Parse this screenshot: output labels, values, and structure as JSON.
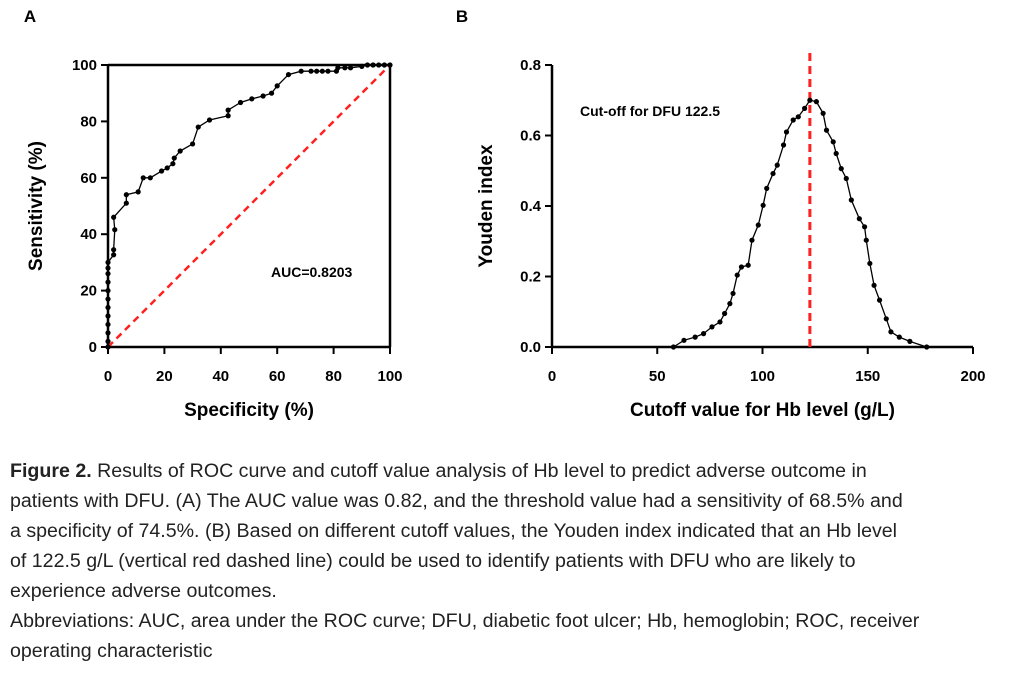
{
  "chart_data": [
    {
      "panel_label": "A",
      "type": "line",
      "xlabel": "Specificity (%)",
      "ylabel": "Sensitivity (%)",
      "xlim": [
        0,
        100
      ],
      "ylim": [
        0,
        100
      ],
      "xticks": [
        "0",
        "20",
        "40",
        "60",
        "80",
        "100"
      ],
      "yticks": [
        "0",
        "20",
        "40",
        "60",
        "80",
        "100"
      ],
      "grid": false,
      "annotation": "AUC=0.8203",
      "line_color": "#000000",
      "reference_line": {
        "from": [
          0,
          0
        ],
        "to": [
          100,
          100
        ],
        "color": "#ff2020",
        "style": "dashed"
      },
      "x": [
        0,
        0,
        0,
        0,
        0,
        0,
        0,
        0,
        0,
        0,
        0,
        0,
        2,
        2,
        2.4,
        2,
        6.5,
        6.5,
        10.7,
        12.5,
        15,
        19,
        21,
        23,
        23.5,
        25.6,
        30,
        32,
        36,
        42.6,
        42.6,
        47,
        51,
        55,
        58,
        60,
        64,
        68.5,
        72,
        74,
        76,
        78,
        81,
        81.5,
        84,
        86,
        90,
        92,
        94,
        96,
        98,
        100
      ],
      "y": [
        0,
        2,
        5,
        8,
        11,
        14,
        17,
        20,
        23,
        26,
        28,
        30,
        32.7,
        34.5,
        41.6,
        46,
        51,
        54,
        55,
        60,
        60,
        62.4,
        63.5,
        65,
        67,
        69.5,
        72,
        78,
        80.5,
        82,
        84,
        86.7,
        88,
        89,
        90,
        92.6,
        96.6,
        97.8,
        97.8,
        97.8,
        97.8,
        97.8,
        97.8,
        99,
        99,
        99,
        99.5,
        100,
        100,
        100,
        100,
        100
      ]
    },
    {
      "panel_label": "B",
      "type": "line",
      "xlabel": "Cutoff value for Hb level (g/L)",
      "ylabel": "Youden index",
      "xlim": [
        0,
        200
      ],
      "ylim": [
        0,
        0.8
      ],
      "xticks": [
        "0",
        "50",
        "100",
        "150",
        "200"
      ],
      "yticks": [
        "0.0",
        "0.2",
        "0.4",
        "0.6",
        "0.8"
      ],
      "grid": false,
      "annotation": "Cut-off  for DFU 122.5",
      "line_color": "#000000",
      "cutoff_line": {
        "x": 122.5,
        "color": "#ff2020",
        "style": "dashed"
      },
      "x": [
        57.7,
        62.7,
        68,
        72,
        76,
        79.8,
        82,
        84.5,
        86,
        88,
        90,
        93.2,
        95,
        98,
        100.3,
        102,
        105,
        107,
        110,
        111.4,
        114.6,
        117,
        120,
        122.5,
        125.6,
        128.8,
        130.4,
        133.6,
        135,
        137.4,
        139.8,
        142.2,
        146,
        148.5,
        149.3,
        151,
        153,
        155.6,
        158.8,
        161,
        165,
        170,
        178
      ],
      "y": [
        0,
        0.019,
        0.028,
        0.038,
        0.057,
        0.071,
        0.095,
        0.123,
        0.152,
        0.204,
        0.227,
        0.232,
        0.303,
        0.346,
        0.402,
        0.45,
        0.492,
        0.516,
        0.573,
        0.61,
        0.644,
        0.653,
        0.677,
        0.7,
        0.696,
        0.663,
        0.615,
        0.582,
        0.549,
        0.506,
        0.478,
        0.417,
        0.364,
        0.341,
        0.303,
        0.237,
        0.175,
        0.133,
        0.08,
        0.043,
        0.028,
        0.016,
        0
      ]
    }
  ],
  "caption": {
    "figure_label": "Figure 2.",
    "line1_rest": " Results of ROC curve and cutoff value analysis of Hb level to predict adverse outcome in",
    "lines": [
      "patients with DFU. (A) The AUC value was 0.82, and the threshold value had a sensitivity of 68.5% and",
      "a specificity of 74.5%. (B) Based on different cutoff values, the Youden index indicated that an Hb level",
      "of 122.5 g/L (vertical red dashed line) could be used to identify patients with DFU who are likely to",
      "experience adverse outcomes.",
      "Abbreviations: AUC, area under the ROC curve; DFU, diabetic foot ulcer; Hb, hemoglobin; ROC, receiver",
      "operating characteristic"
    ]
  }
}
